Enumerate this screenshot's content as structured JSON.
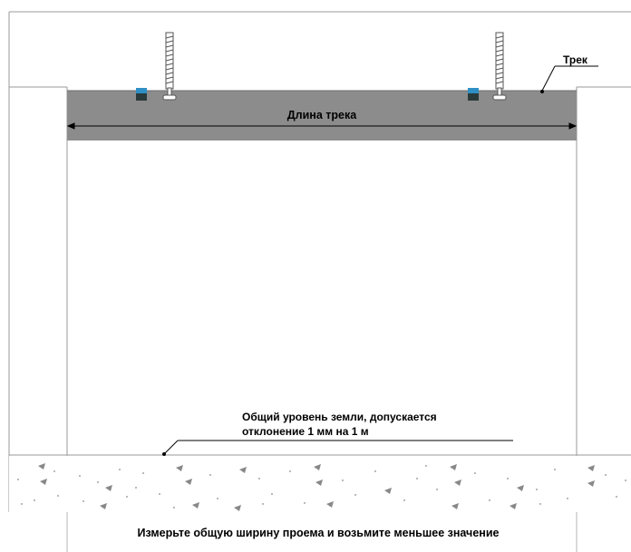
{
  "labels": {
    "track": "Трек",
    "track_length": "Длина трека",
    "floor_note_line1": "Общий уровень земли, допускается",
    "floor_note_line2": "отклонение 1 мм на 1 м",
    "bottom_note": "Измерьте общую ширину проема и возьмите меньшее значение"
  },
  "colors": {
    "track_fill": "#8c8c8c",
    "bracket_blue": "#2e8fc4",
    "bracket_dark": "#2a3a3a",
    "line": "#9a9a9a",
    "concrete_dots": "#8a8a8a"
  }
}
